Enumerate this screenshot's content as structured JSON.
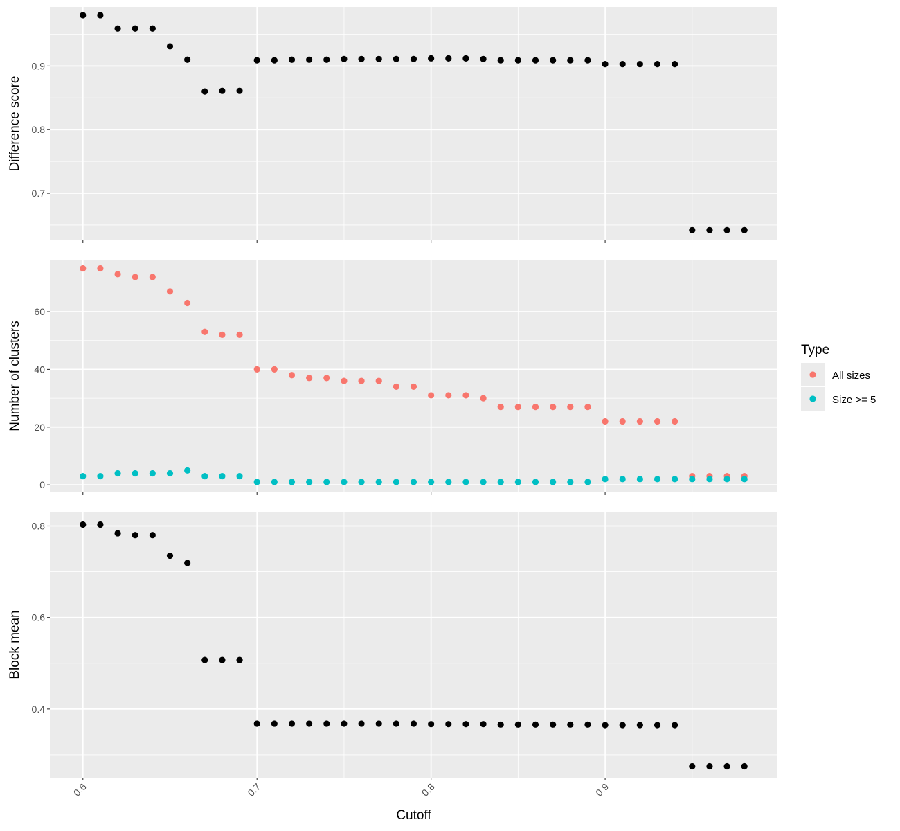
{
  "chart_data": {
    "type": "scatter",
    "x_axis": {
      "label": "Cutoff",
      "ticks": [
        0.6,
        0.7,
        0.8,
        0.9
      ],
      "tick_labels": [
        "0.6",
        "0.7",
        "0.8",
        "0.9"
      ],
      "range": [
        0.581,
        0.999
      ]
    },
    "x": [
      0.6,
      0.61,
      0.62,
      0.63,
      0.64,
      0.65,
      0.66,
      0.67,
      0.68,
      0.69,
      0.7,
      0.71,
      0.72,
      0.73,
      0.74,
      0.75,
      0.76,
      0.77,
      0.78,
      0.79,
      0.8,
      0.81,
      0.82,
      0.83,
      0.84,
      0.85,
      0.86,
      0.87,
      0.88,
      0.89,
      0.9,
      0.91,
      0.92,
      0.93,
      0.94,
      0.95,
      0.96,
      0.97,
      0.98
    ],
    "panels": [
      {
        "ylabel": "Difference score",
        "ylim": [
          0.626,
          0.993
        ],
        "yticks": [
          0.7,
          0.8,
          0.9
        ],
        "ytick_labels": [
          "0.7",
          "0.8",
          "0.9"
        ],
        "series": [
          {
            "color": "#000000",
            "values": [
              0.98,
              0.98,
              0.959,
              0.959,
              0.959,
              0.931,
              0.91,
              0.86,
              0.861,
              0.861,
              0.909,
              0.909,
              0.91,
              0.91,
              0.91,
              0.911,
              0.911,
              0.911,
              0.911,
              0.911,
              0.912,
              0.912,
              0.912,
              0.911,
              0.909,
              0.909,
              0.909,
              0.909,
              0.909,
              0.909,
              0.903,
              0.903,
              0.903,
              0.903,
              0.903,
              0.642,
              0.642,
              0.642,
              0.642
            ]
          }
        ]
      },
      {
        "ylabel": "Number of clusters",
        "ylim": [
          -2.6,
          78.0
        ],
        "yticks": [
          0,
          20,
          40,
          60
        ],
        "ytick_labels": [
          "0",
          "20",
          "40",
          "60"
        ],
        "series": [
          {
            "name": "All sizes",
            "color": "#F8766D",
            "values": [
              75,
              75,
              73,
              72,
              72,
              67,
              63,
              53,
              52,
              52,
              40,
              40,
              38,
              37,
              37,
              36,
              36,
              36,
              34,
              34,
              31,
              31,
              31,
              30,
              27,
              27,
              27,
              27,
              27,
              27,
              22,
              22,
              22,
              22,
              22,
              3,
              3,
              3,
              3
            ]
          },
          {
            "name": "Size >= 5",
            "color": "#00BFC4",
            "values": [
              3,
              3,
              4,
              4,
              4,
              4,
              5,
              3,
              3,
              3,
              1,
              1,
              1,
              1,
              1,
              1,
              1,
              1,
              1,
              1,
              1,
              1,
              1,
              1,
              1,
              1,
              1,
              1,
              1,
              1,
              2,
              2,
              2,
              2,
              2,
              2,
              2,
              2,
              2
            ]
          }
        ]
      },
      {
        "ylabel": "Block mean",
        "ylim": [
          0.25,
          0.831
        ],
        "yticks": [
          0.4,
          0.6,
          0.8
        ],
        "ytick_labels": [
          "0.4",
          "0.6",
          "0.8"
        ],
        "series": [
          {
            "color": "#000000",
            "values": [
              0.803,
              0.803,
              0.784,
              0.78,
              0.78,
              0.735,
              0.719,
              0.507,
              0.507,
              0.507,
              0.368,
              0.368,
              0.368,
              0.368,
              0.368,
              0.368,
              0.368,
              0.368,
              0.368,
              0.368,
              0.367,
              0.367,
              0.367,
              0.367,
              0.366,
              0.366,
              0.366,
              0.366,
              0.366,
              0.366,
              0.365,
              0.365,
              0.365,
              0.365,
              0.365,
              0.275,
              0.275,
              0.275,
              0.275
            ]
          }
        ]
      }
    ],
    "legend": {
      "title": "Type",
      "position": "right",
      "items": [
        {
          "label": "All sizes",
          "color": "#F8766D"
        },
        {
          "label": "Size >= 5",
          "color": "#00BFC4"
        }
      ]
    },
    "grid": true,
    "panel_background": "#EBEBEB"
  }
}
